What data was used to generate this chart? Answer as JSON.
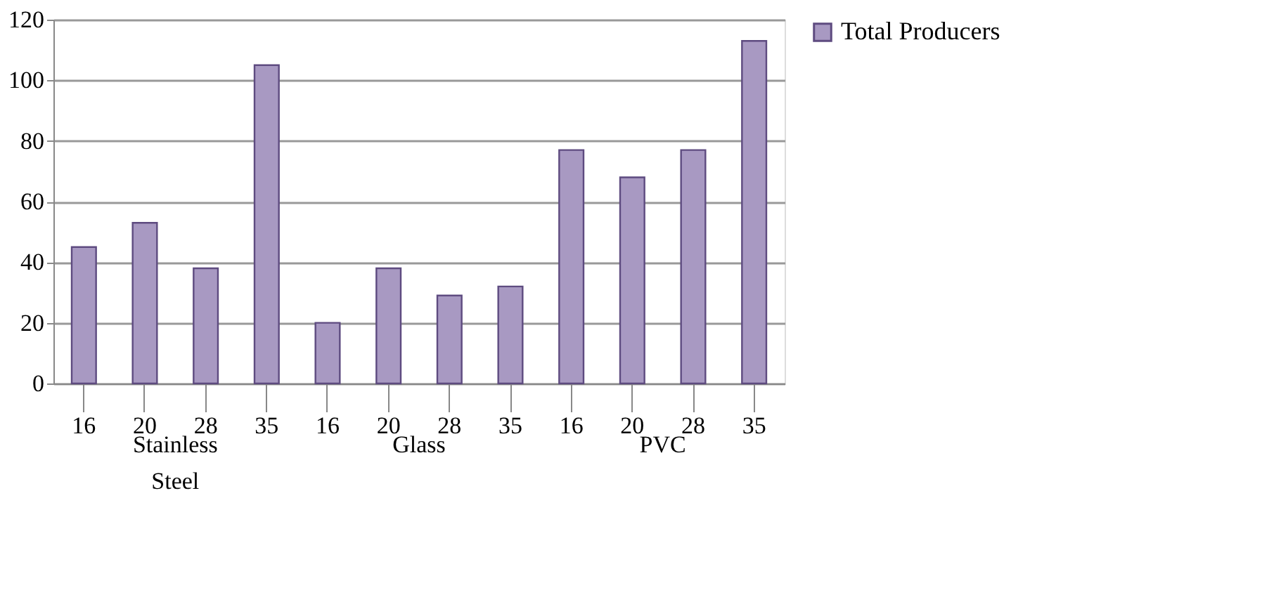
{
  "chart_data": {
    "type": "bar",
    "categories": [
      "16",
      "20",
      "28",
      "35",
      "16",
      "20",
      "28",
      "35",
      "16",
      "20",
      "28",
      "35"
    ],
    "series": [
      {
        "name": "Total Producers",
        "color": "#a899c2",
        "values": [
          45,
          53,
          38,
          105,
          20,
          38,
          29,
          32,
          77,
          68,
          77,
          113
        ]
      }
    ],
    "annotations": [
      "Stainless Steel",
      "Glass",
      "PVC"
    ],
    "ylim": [
      0,
      120
    ],
    "yticks": [
      0,
      20,
      40,
      60,
      80,
      100,
      120
    ],
    "grid": "y",
    "legend": "right"
  }
}
